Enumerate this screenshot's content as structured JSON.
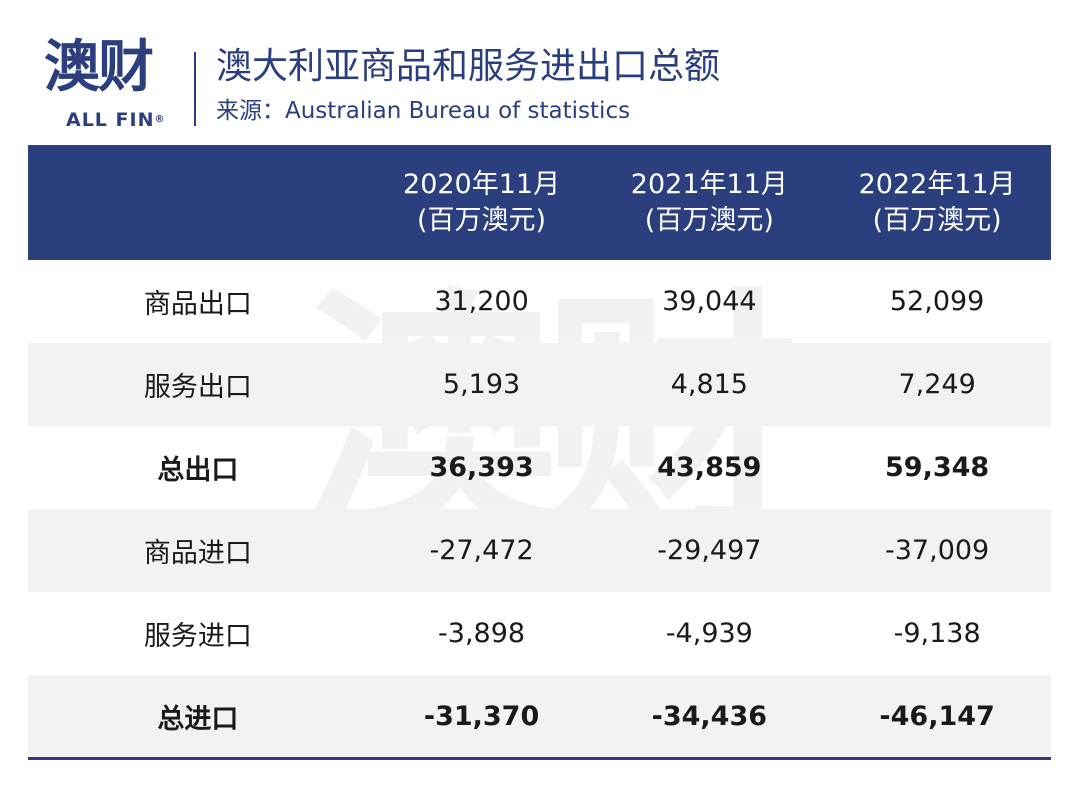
{
  "header": {
    "logo_cn": "澳财",
    "logo_en": "ALL FIN",
    "logo_reg": "®",
    "title": "澳大利亚商品和服务进出口总额",
    "source": "来源：Australian Bureau of statistics"
  },
  "watermark": {
    "cn": "澳财",
    "en": "ALL FIN"
  },
  "colors": {
    "brand": "#2b3f7e",
    "shade": "#f2f2f2"
  },
  "table": {
    "columns": [
      {
        "year": "2020年11月",
        "unit": "(百万澳元)"
      },
      {
        "year": "2021年11月",
        "unit": "(百万澳元)"
      },
      {
        "year": "2022年11月",
        "unit": "(百万澳元)"
      }
    ],
    "rows": [
      {
        "label": "商品出口",
        "values": [
          "31,200",
          "39,044",
          "52,099"
        ]
      },
      {
        "label": "服务出口",
        "values": [
          "5,193",
          "4,815",
          "7,249"
        ]
      },
      {
        "label": "总出口",
        "values": [
          "36,393",
          "43,859",
          "59,348"
        ]
      },
      {
        "label": "商品进口",
        "values": [
          "-27,472",
          "-29,497",
          "-37,009"
        ]
      },
      {
        "label": "服务进口",
        "values": [
          "-3,898",
          "-4,939",
          "-9,138"
        ]
      },
      {
        "label": "总进口",
        "values": [
          "-31,370",
          "-34,436",
          "-46,147"
        ]
      }
    ]
  }
}
